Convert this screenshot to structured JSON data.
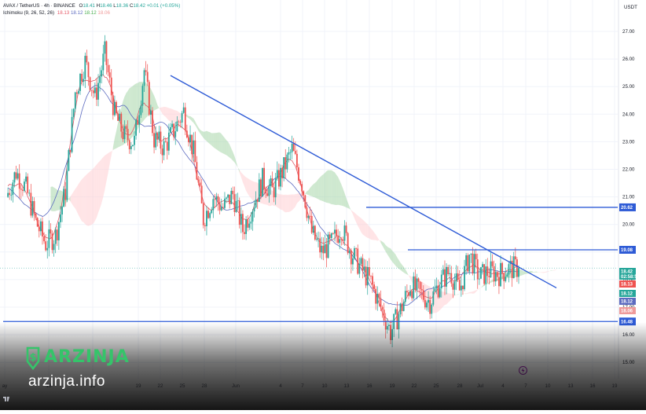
{
  "header": {
    "symbol_line": "AVAX / TetherUS · 4h · BINANCE",
    "ohlc": [
      {
        "key": "O",
        "value": "18.41"
      },
      {
        "key": "H",
        "value": "18.46"
      },
      {
        "key": "L",
        "value": "18.36"
      },
      {
        "key": "C",
        "value": "18.42"
      }
    ],
    "change": "+0.01 (+0.05%)",
    "indicator_name": "Ichimoku (9, 26, 52, 26)",
    "indicator_values": [
      {
        "value": "18.13",
        "color": "#e65b69"
      },
      {
        "value": "18.12",
        "color": "#5c6bc0"
      },
      {
        "value": "18.12",
        "color": "#4caf50"
      },
      {
        "value": "18.06",
        "color": "#ef9a9a"
      }
    ],
    "currency": "USDT"
  },
  "colors": {
    "up": "#26a69a",
    "down": "#ef5350",
    "trendline": "#2e5bd6",
    "level": "#2e5bd6",
    "tenkan": "#e05866",
    "kijun": "#5c6bc0",
    "cloud_bull": "#a5d6a7",
    "cloud_bear": "#ffcdd2"
  },
  "chart_data": {
    "type": "candlestick",
    "instrument": "AVAX / TetherUS",
    "timeframe": "4h",
    "exchange": "BINANCE",
    "ylim": [
      14.8,
      27.4
    ],
    "y_ticks": [
      "27.00",
      "26.00",
      "25.00",
      "24.00",
      "23.00",
      "22.00",
      "21.00",
      "20.00",
      "19.00",
      "18.00",
      "17.00",
      "16.00",
      "15.00"
    ],
    "x_ticks": [
      "ay",
      "13",
      "16",
      "19",
      "22",
      "25",
      "28",
      "Jun",
      "4",
      "7",
      "10",
      "13",
      "16",
      "19",
      "22",
      "25",
      "28",
      "Jul",
      "4",
      "7",
      "10",
      "13",
      "16",
      "19",
      "22"
    ],
    "price_path": [
      {
        "x": "May 10",
        "y": 21.0
      },
      {
        "x": "May 11",
        "y": 21.9
      },
      {
        "x": "May 12",
        "y": 21.3
      },
      {
        "x": "May 13",
        "y": 20.1
      },
      {
        "x": "May 14",
        "y": 19.3
      },
      {
        "x": "May 15",
        "y": 19.6
      },
      {
        "x": "May 16",
        "y": 21.2
      },
      {
        "x": "May 17",
        "y": 24.8
      },
      {
        "x": "May 18",
        "y": 25.9
      },
      {
        "x": "May 19",
        "y": 24.6
      },
      {
        "x": "May 20",
        "y": 26.2
      },
      {
        "x": "May 21",
        "y": 24.0
      },
      {
        "x": "May 22",
        "y": 23.2
      },
      {
        "x": "May 23",
        "y": 23.0
      },
      {
        "x": "May 24",
        "y": 25.6
      },
      {
        "x": "May 25",
        "y": 23.1
      },
      {
        "x": "May 26",
        "y": 22.8
      },
      {
        "x": "May 27",
        "y": 23.4
      },
      {
        "x": "May 28",
        "y": 24.1
      },
      {
        "x": "May 29",
        "y": 22.6
      },
      {
        "x": "May 30",
        "y": 20.2
      },
      {
        "x": "May 31",
        "y": 21.0
      },
      {
        "x": "Jun 1",
        "y": 20.6
      },
      {
        "x": "Jun 2",
        "y": 21.1
      },
      {
        "x": "Jun 3",
        "y": 19.8
      },
      {
        "x": "Jun 4",
        "y": 20.7
      },
      {
        "x": "Jun 5",
        "y": 21.6
      },
      {
        "x": "Jun 6",
        "y": 21.2
      },
      {
        "x": "Jun 7",
        "y": 21.9
      },
      {
        "x": "Jun 8",
        "y": 22.7
      },
      {
        "x": "Jun 9",
        "y": 21.5
      },
      {
        "x": "Jun 10",
        "y": 19.7
      },
      {
        "x": "Jun 11",
        "y": 19.0
      },
      {
        "x": "Jun 12",
        "y": 19.3
      },
      {
        "x": "Jun 13",
        "y": 19.9
      },
      {
        "x": "Jun 14",
        "y": 19.0
      },
      {
        "x": "Jun 15",
        "y": 18.4
      },
      {
        "x": "Jun 16",
        "y": 17.9
      },
      {
        "x": "Jun 17",
        "y": 17.0
      },
      {
        "x": "Jun 18",
        "y": 16.1
      },
      {
        "x": "Jun 19",
        "y": 16.9
      },
      {
        "x": "Jun 20",
        "y": 17.8
      },
      {
        "x": "Jun 21",
        "y": 17.5
      },
      {
        "x": "Jun 22",
        "y": 17.2
      },
      {
        "x": "Jun 23",
        "y": 17.9
      },
      {
        "x": "Jun 24",
        "y": 18.3
      },
      {
        "x": "Jun 25",
        "y": 17.6
      },
      {
        "x": "Jun 26",
        "y": 18.9
      },
      {
        "x": "Jun 27",
        "y": 18.1
      },
      {
        "x": "Jun 28",
        "y": 18.3
      },
      {
        "x": "Jun 29",
        "y": 18.2
      },
      {
        "x": "Jun 30",
        "y": 18.4
      },
      {
        "x": "Jul 1",
        "y": 18.42
      }
    ],
    "ichimoku": {
      "params": "(9, 26, 52, 26)",
      "conversion_line": 18.13,
      "base_line": 18.12,
      "leading_span_a": 18.12,
      "leading_span_b": 18.06
    },
    "horizontal_levels": [
      {
        "label": "20.62",
        "value": 20.62
      },
      {
        "label": "19.08",
        "value": 19.08
      },
      {
        "label": "16.48",
        "value": 16.48
      }
    ],
    "trendline": {
      "from": {
        "x": "May 22",
        "y": 25.4
      },
      "to": {
        "x": "Jul 2",
        "y": 17.7
      }
    },
    "price_tags": [
      {
        "label": "18.42",
        "sub": "02:58:53",
        "value": 18.42,
        "color": "#26a69a"
      },
      {
        "label": "18.13",
        "value": 18.13,
        "color": "#ef5350"
      },
      {
        "label": "18.12",
        "value": 18.12,
        "color": "#26a69a"
      },
      {
        "label": "18.12",
        "value": 18.12,
        "color": "#5c6bc0"
      },
      {
        "label": "18.06",
        "value": 18.06,
        "color": "#ef9a9a"
      }
    ],
    "grid": true
  },
  "branding": {
    "name": "ARZINJA",
    "url": "arzinja.info"
  }
}
